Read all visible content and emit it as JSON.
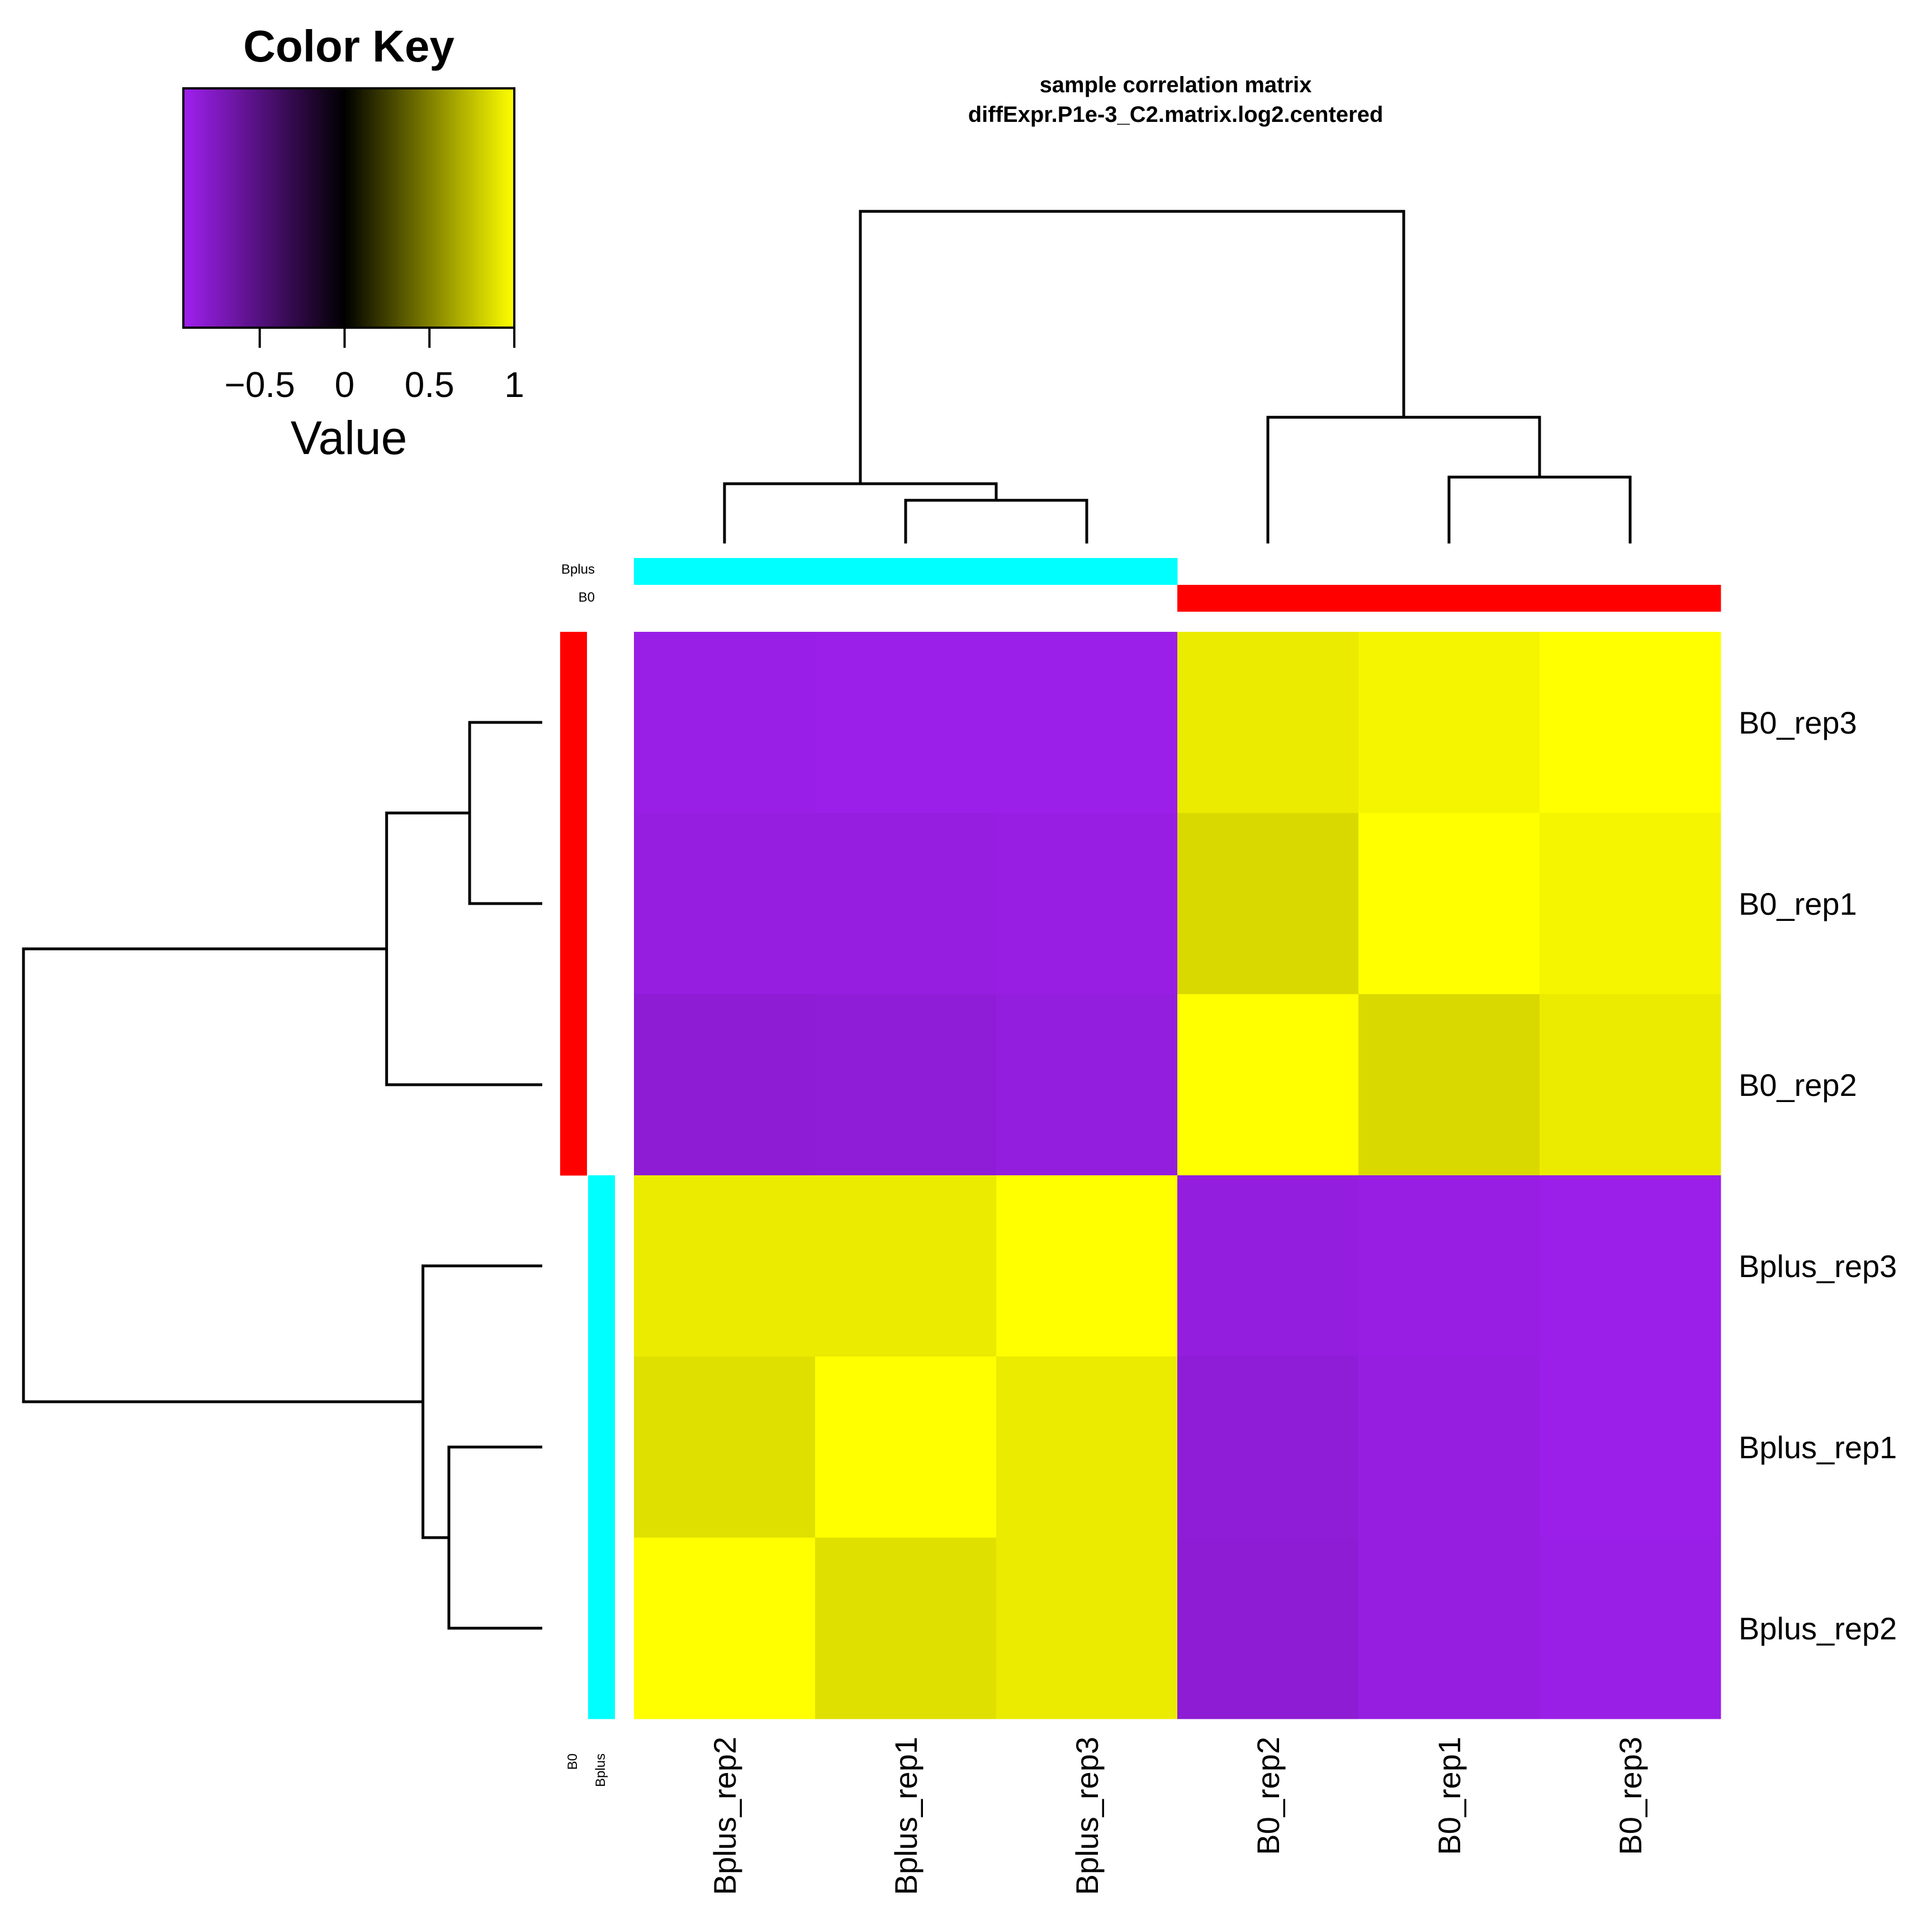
{
  "chart_data": {
    "type": "heatmap",
    "title": "sample correlation matrix",
    "subtitle": "diffExpr.P1e-3_C2.matrix.log2.centered",
    "color_key": {
      "title": "Color Key",
      "axis_title": "Value",
      "ticks": [
        -0.5,
        0,
        0.5,
        1
      ],
      "tick_labels": [
        "−0.5",
        "0",
        "0.5",
        "1"
      ],
      "range": [
        -0.95,
        1.0
      ],
      "colors": {
        "low": "#A020F0",
        "mid": "#000000",
        "high": "#FFFF00"
      }
    },
    "column_labels": [
      "Bplus_rep2",
      "Bplus_rep1",
      "Bplus_rep3",
      "B0_rep2",
      "B0_rep1",
      "B0_rep3"
    ],
    "row_labels": [
      "B0_rep3",
      "B0_rep1",
      "B0_rep2",
      "Bplus_rep3",
      "Bplus_rep1",
      "Bplus_rep2"
    ],
    "values": [
      [
        -0.91,
        -0.92,
        -0.92,
        0.92,
        0.96,
        1.0
      ],
      [
        -0.89,
        -0.89,
        -0.9,
        0.85,
        1.0,
        0.96
      ],
      [
        -0.84,
        -0.85,
        -0.88,
        1.0,
        0.85,
        0.92
      ],
      [
        0.92,
        0.92,
        1.0,
        -0.88,
        -0.9,
        -0.92
      ],
      [
        0.88,
        1.0,
        0.92,
        -0.85,
        -0.89,
        -0.92
      ],
      [
        1.0,
        0.88,
        0.92,
        -0.84,
        -0.89,
        -0.91
      ]
    ],
    "groups": {
      "names": [
        "Bplus",
        "B0"
      ],
      "colors": {
        "Bplus": "#00FFFF",
        "B0": "#FF0000"
      },
      "column_groups": [
        "Bplus",
        "Bplus",
        "Bplus",
        "B0",
        "B0",
        "B0"
      ],
      "row_groups": [
        "B0",
        "B0",
        "B0",
        "Bplus",
        "Bplus",
        "Bplus"
      ]
    },
    "column_dendrogram": {
      "merges": [
        [
          1,
          2,
          0.13
        ],
        [
          0,
          -1,
          0.18
        ],
        [
          4,
          5,
          0.2
        ],
        [
          3,
          -3,
          0.38
        ],
        [
          -2,
          -4,
          1.0
        ]
      ]
    },
    "row_dendrogram": {
      "merges": [
        [
          0,
          1,
          0.14
        ],
        [
          -1,
          2,
          0.3
        ],
        [
          4,
          5,
          0.18
        ],
        [
          3,
          -3,
          0.23
        ],
        [
          -2,
          -4,
          1.0
        ]
      ]
    }
  }
}
